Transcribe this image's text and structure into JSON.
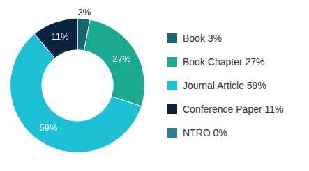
{
  "chart_data": {
    "type": "doughnut",
    "categories": [
      "Book 3%",
      "Book Chapter 27%",
      "Journal Article 59%",
      "Conference Paper 11%",
      "NTRO 0%"
    ],
    "values": [
      3,
      27,
      59,
      11,
      0
    ],
    "value_labels": [
      "3%",
      "27%",
      "59%",
      "11%",
      null
    ],
    "colors": [
      "#17686e",
      "#1ba98f",
      "#1ec0d6",
      "#0c2340",
      "#2a8493"
    ],
    "data_labels": true,
    "legend": "right"
  }
}
